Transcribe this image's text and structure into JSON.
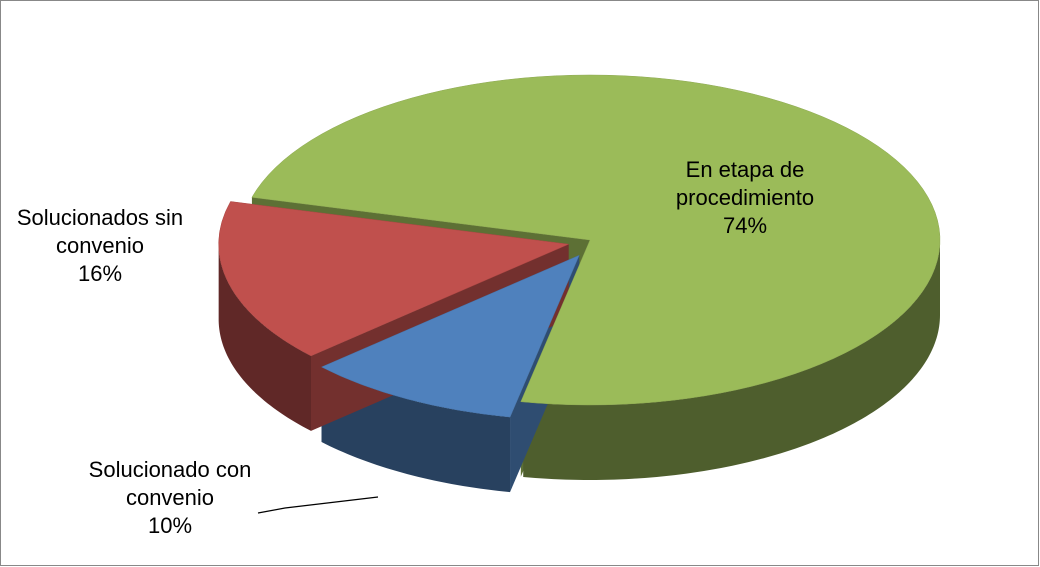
{
  "chart_data": {
    "type": "pie",
    "categories": [
      "En etapa de procedimiento",
      "Solucionado con convenio",
      "Solucionados sin convenio"
    ],
    "values": [
      74,
      10,
      16
    ],
    "value_labels": [
      "74%",
      "10%",
      "16%"
    ],
    "colors": [
      "#9bbb59",
      "#4f81bd",
      "#c0504d"
    ]
  }
}
